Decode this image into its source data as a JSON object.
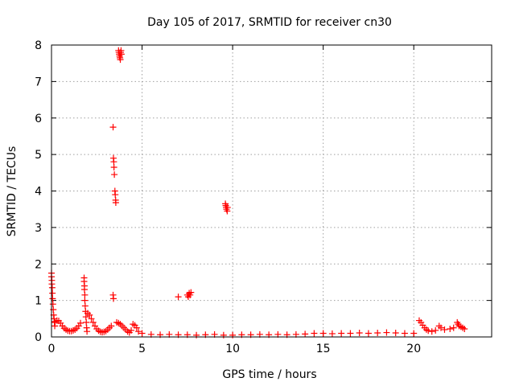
{
  "chart_data": {
    "type": "scatter",
    "title": "Day 105 of 2017, SRMTID for receiver cn30",
    "xlabel": "GPS time / hours",
    "ylabel": "SRMTID / TECUs",
    "xlim": [
      0,
      24.3
    ],
    "ylim": [
      0,
      8
    ],
    "xticks": [
      0,
      5,
      10,
      15,
      20
    ],
    "yticks": [
      0,
      1,
      2,
      3,
      4,
      5,
      6,
      7,
      8
    ],
    "xtick_labels": [
      "0",
      "5",
      "10",
      "15",
      "20"
    ],
    "ytick_labels": [
      "0",
      "1",
      "2",
      "3",
      "4",
      "5",
      "6",
      "7",
      "8"
    ],
    "grid": true,
    "marker": "+",
    "color": "#ff0000",
    "series": [
      {
        "name": "SRMTID",
        "points": [
          [
            0.0,
            1.75
          ],
          [
            0.0,
            1.65
          ],
          [
            0.02,
            1.55
          ],
          [
            0.02,
            1.45
          ],
          [
            0.04,
            1.35
          ],
          [
            0.05,
            1.2
          ],
          [
            0.06,
            1.05
          ],
          [
            0.08,
            0.9
          ],
          [
            0.1,
            0.75
          ],
          [
            0.12,
            0.6
          ],
          [
            0.14,
            0.5
          ],
          [
            0.16,
            0.4
          ],
          [
            0.18,
            0.3
          ],
          [
            0.2,
            0.42
          ],
          [
            0.3,
            0.45
          ],
          [
            0.4,
            0.44
          ],
          [
            0.5,
            0.38
          ],
          [
            0.6,
            0.3
          ],
          [
            0.7,
            0.24
          ],
          [
            0.8,
            0.2
          ],
          [
            0.9,
            0.17
          ],
          [
            1.0,
            0.16
          ],
          [
            1.1,
            0.16
          ],
          [
            1.2,
            0.18
          ],
          [
            1.3,
            0.2
          ],
          [
            1.4,
            0.24
          ],
          [
            1.5,
            0.3
          ],
          [
            1.6,
            0.38
          ],
          [
            1.8,
            1.62
          ],
          [
            1.8,
            1.52
          ],
          [
            1.82,
            1.4
          ],
          [
            1.82,
            1.3
          ],
          [
            1.84,
            1.15
          ],
          [
            1.84,
            1.0
          ],
          [
            1.86,
            0.85
          ],
          [
            1.88,
            0.7
          ],
          [
            1.9,
            0.55
          ],
          [
            1.92,
            0.4
          ],
          [
            1.94,
            0.25
          ],
          [
            1.96,
            0.15
          ],
          [
            2.0,
            0.65
          ],
          [
            2.1,
            0.6
          ],
          [
            2.2,
            0.5
          ],
          [
            2.3,
            0.4
          ],
          [
            2.4,
            0.3
          ],
          [
            2.5,
            0.22
          ],
          [
            2.6,
            0.17
          ],
          [
            2.7,
            0.14
          ],
          [
            2.8,
            0.13
          ],
          [
            2.9,
            0.14
          ],
          [
            3.0,
            0.16
          ],
          [
            3.1,
            0.2
          ],
          [
            3.2,
            0.25
          ],
          [
            3.3,
            0.3
          ],
          [
            3.4,
            5.75
          ],
          [
            3.42,
            4.9
          ],
          [
            3.44,
            4.8
          ],
          [
            3.45,
            4.65
          ],
          [
            3.47,
            4.45
          ],
          [
            3.5,
            4.0
          ],
          [
            3.52,
            3.9
          ],
          [
            3.54,
            3.75
          ],
          [
            3.55,
            3.68
          ],
          [
            3.4,
            1.15
          ],
          [
            3.42,
            1.05
          ],
          [
            3.6,
            0.4
          ],
          [
            3.7,
            0.38
          ],
          [
            3.8,
            0.35
          ],
          [
            3.9,
            0.3
          ],
          [
            4.0,
            0.25
          ],
          [
            3.7,
            7.85
          ],
          [
            3.72,
            7.8
          ],
          [
            3.74,
            7.75
          ],
          [
            3.76,
            7.7
          ],
          [
            3.78,
            7.65
          ],
          [
            3.8,
            7.6
          ],
          [
            3.82,
            7.8
          ],
          [
            3.84,
            7.85
          ],
          [
            3.86,
            7.75
          ],
          [
            4.1,
            0.2
          ],
          [
            4.2,
            0.15
          ],
          [
            4.3,
            0.12
          ],
          [
            4.4,
            0.18
          ],
          [
            4.5,
            0.35
          ],
          [
            4.6,
            0.32
          ],
          [
            4.7,
            0.25
          ],
          [
            4.8,
            0.15
          ],
          [
            5.0,
            0.1
          ],
          [
            5.5,
            0.07
          ],
          [
            6.0,
            0.06
          ],
          [
            6.5,
            0.07
          ],
          [
            7.0,
            1.1
          ],
          [
            7.0,
            0.06
          ],
          [
            7.5,
            1.15
          ],
          [
            7.55,
            1.1
          ],
          [
            7.6,
            1.2
          ],
          [
            7.65,
            1.15
          ],
          [
            7.7,
            1.22
          ],
          [
            7.5,
            0.06
          ],
          [
            8.0,
            0.05
          ],
          [
            8.5,
            0.06
          ],
          [
            9.0,
            0.07
          ],
          [
            9.6,
            3.65
          ],
          [
            9.62,
            3.6
          ],
          [
            9.64,
            3.55
          ],
          [
            9.66,
            3.5
          ],
          [
            9.7,
            3.45
          ],
          [
            9.72,
            3.55
          ],
          [
            9.5,
            0.05
          ],
          [
            10.0,
            0.05
          ],
          [
            10.5,
            0.06
          ],
          [
            11.0,
            0.06
          ],
          [
            11.5,
            0.07
          ],
          [
            12.0,
            0.06
          ],
          [
            12.5,
            0.07
          ],
          [
            13.0,
            0.06
          ],
          [
            13.5,
            0.07
          ],
          [
            14.0,
            0.08
          ],
          [
            14.5,
            0.1
          ],
          [
            15.0,
            0.1
          ],
          [
            15.5,
            0.09
          ],
          [
            16.0,
            0.1
          ],
          [
            16.5,
            0.1
          ],
          [
            17.0,
            0.11
          ],
          [
            17.5,
            0.1
          ],
          [
            18.0,
            0.11
          ],
          [
            18.5,
            0.12
          ],
          [
            19.0,
            0.11
          ],
          [
            19.5,
            0.1
          ],
          [
            20.0,
            0.1
          ],
          [
            20.3,
            0.45
          ],
          [
            20.4,
            0.4
          ],
          [
            20.5,
            0.32
          ],
          [
            20.6,
            0.25
          ],
          [
            20.7,
            0.2
          ],
          [
            20.8,
            0.17
          ],
          [
            21.0,
            0.15
          ],
          [
            21.2,
            0.18
          ],
          [
            21.4,
            0.3
          ],
          [
            21.5,
            0.25
          ],
          [
            21.7,
            0.2
          ],
          [
            22.0,
            0.22
          ],
          [
            22.2,
            0.25
          ],
          [
            22.4,
            0.4
          ],
          [
            22.45,
            0.35
          ],
          [
            22.5,
            0.3
          ],
          [
            22.6,
            0.28
          ],
          [
            22.7,
            0.25
          ],
          [
            22.8,
            0.22
          ]
        ]
      }
    ]
  }
}
